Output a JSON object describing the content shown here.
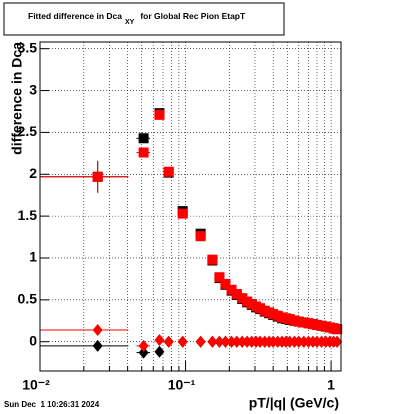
{
  "chart_data": {
    "type": "scatter",
    "title": "Fitted difference in Dca",
    "title_subscript": "XY",
    "title_suffix": "for Global Rec Pion EtapT",
    "x_label": "pT/|q| (GeV/c)",
    "y_label": "difference in Dca",
    "footer": "Sun Dec  1 10:26:31 2024",
    "x_log": true,
    "grid": true,
    "xlim": [
      0.01,
      1.17
    ],
    "ylim": [
      -0.35,
      3.58
    ],
    "xticks": [
      {
        "value": 0.01,
        "label": "10⁻²"
      },
      {
        "value": 0.1,
        "label": "10⁻¹"
      },
      1
    ],
    "x_minor_ticks": [
      0.02,
      0.03,
      0.04,
      0.05,
      0.06,
      0.07,
      0.08,
      0.09,
      0.2,
      0.3,
      0.4,
      0.5,
      0.6,
      0.7,
      0.8,
      0.9
    ],
    "yticks": [
      0,
      0.5,
      1,
      1.5,
      2,
      2.5,
      3,
      3.5
    ],
    "x": [
      0.0249,
      0.0515,
      0.0662,
      0.0766,
      0.0956,
      0.127,
      0.153,
      0.171,
      0.188,
      0.207,
      0.225,
      0.245,
      0.265,
      0.285,
      0.305,
      0.325,
      0.35,
      0.375,
      0.4,
      0.43,
      0.46,
      0.49,
      0.52,
      0.56,
      0.6,
      0.65,
      0.7,
      0.75,
      0.8,
      0.86,
      0.92,
      0.98,
      1.04,
      1.1
    ],
    "x_low": [
      0.01,
      0.046,
      0.062,
      null,
      0.09,
      0.12,
      null,
      null,
      null,
      null,
      null,
      null,
      null,
      null,
      null,
      null,
      null,
      null,
      null,
      null,
      null,
      null,
      null,
      null,
      null,
      null,
      null,
      null,
      null,
      null,
      null,
      null,
      null,
      null
    ],
    "x_high": [
      0.0405,
      0.057,
      0.071,
      null,
      0.101,
      0.134,
      null,
      null,
      null,
      null,
      null,
      null,
      null,
      null,
      null,
      null,
      null,
      null,
      null,
      null,
      null,
      null,
      null,
      null,
      null,
      null,
      null,
      null,
      null,
      null,
      null,
      null,
      null,
      null
    ],
    "series": [
      {
        "name": "black squares",
        "color": "#000000",
        "marker": "square",
        "values": [
          1.97,
          2.43,
          2.73,
          2.02,
          1.56,
          1.29,
          0.97,
          0.76,
          0.68,
          0.61,
          0.56,
          0.51,
          0.47,
          0.44,
          0.41,
          0.39,
          0.36,
          0.34,
          0.32,
          0.3,
          0.28,
          0.27,
          0.26,
          0.25,
          0.24,
          0.23,
          0.22,
          0.21,
          0.2,
          0.19,
          0.18,
          0.17,
          0.16,
          0.15
        ],
        "y_err": [
          0.19,
          null,
          null,
          null,
          null,
          null,
          null,
          null,
          null,
          null,
          null,
          null,
          null,
          null,
          null,
          null,
          null,
          null,
          null,
          null,
          null,
          null,
          null,
          null,
          null,
          null,
          null,
          null,
          null,
          null,
          null,
          null,
          null,
          null
        ]
      },
      {
        "name": "red squares",
        "color": "#ff0000",
        "marker": "square",
        "values": [
          1.97,
          2.26,
          2.71,
          2.03,
          1.53,
          1.26,
          0.98,
          0.77,
          0.69,
          0.62,
          0.57,
          0.52,
          0.48,
          0.45,
          0.42,
          0.4,
          0.37,
          0.35,
          0.33,
          0.31,
          0.29,
          0.28,
          0.27,
          0.25,
          0.24,
          0.23,
          0.22,
          0.21,
          0.2,
          0.19,
          0.18,
          0.17,
          0.16,
          0.15
        ],
        "y_err": [
          0.19,
          null,
          null,
          null,
          null,
          null,
          null,
          null,
          null,
          null,
          null,
          null,
          null,
          null,
          null,
          null,
          null,
          null,
          null,
          null,
          null,
          null,
          null,
          null,
          null,
          null,
          null,
          null,
          null,
          null,
          null,
          null,
          null,
          null
        ]
      },
      {
        "name": "black diamonds",
        "color": "#000000",
        "marker": "diamond",
        "values": [
          -0.05,
          -0.13,
          -0.12,
          0,
          0,
          0,
          0,
          0,
          0,
          0,
          0,
          0,
          0,
          0,
          0,
          0,
          0,
          0,
          0,
          0,
          0,
          0,
          0,
          0,
          0,
          0,
          0,
          0,
          0,
          0,
          0,
          0,
          0,
          0
        ],
        "y_err": [
          0.06,
          0.04,
          0.04,
          null,
          null,
          null,
          null,
          null,
          null,
          null,
          null,
          null,
          null,
          null,
          null,
          null,
          null,
          null,
          null,
          null,
          null,
          null,
          null,
          null,
          null,
          null,
          null,
          null,
          null,
          null,
          null,
          null,
          null,
          null
        ]
      },
      {
        "name": "red diamonds",
        "color": "#ff0000",
        "marker": "diamond",
        "values": [
          0.14,
          -0.05,
          0.02,
          0,
          0,
          0,
          0,
          0,
          0,
          0,
          0,
          0,
          0,
          0,
          0,
          0,
          0,
          0,
          0,
          0,
          0,
          0,
          0,
          0,
          0,
          0,
          0,
          0,
          0,
          0,
          0,
          0,
          0,
          0
        ],
        "y_err": [
          null,
          null,
          null,
          null,
          null,
          null,
          null,
          null,
          null,
          null,
          null,
          null,
          null,
          null,
          null,
          null,
          null,
          null,
          null,
          null,
          null,
          null,
          null,
          null,
          null,
          null,
          null,
          null,
          null,
          null,
          null,
          null,
          null,
          null
        ]
      }
    ]
  }
}
